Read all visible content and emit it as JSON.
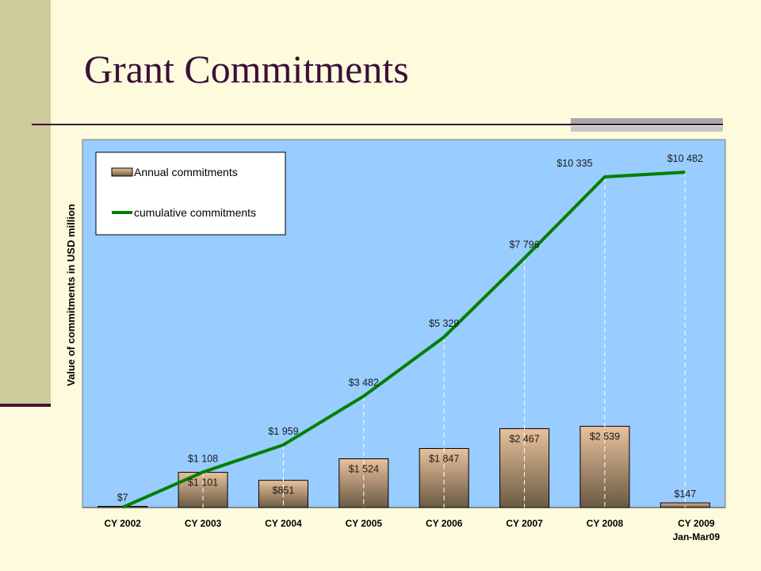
{
  "slide": {
    "title": "Grant Commitments"
  },
  "colors": {
    "plot_bg": "#99ccff",
    "bar_top": "#e9c19c",
    "bar_bottom": "#6a5a43",
    "line": "#008000",
    "title": "#3c0f3a",
    "side_band": "#cdcb9a"
  },
  "chart_data": {
    "type": "bar",
    "categories": [
      [
        "CY 2002"
      ],
      [
        "CY 2003"
      ],
      [
        "CY 2004"
      ],
      [
        "CY 2005"
      ],
      [
        "CY 2006"
      ],
      [
        "CY 2007"
      ],
      [
        "CY 2008"
      ],
      [
        "CY 2009",
        "Jan-Mar09"
      ]
    ],
    "ylabel": "Value of commitments in USD million",
    "ylim": [
      0,
      11500
    ],
    "grid": false,
    "legend_position": "top-left",
    "series": [
      {
        "name": "Annual commitments",
        "type": "bar",
        "values": [
          7,
          1101,
          851,
          1524,
          1847,
          2467,
          2539,
          147
        ],
        "labels": [
          "$7",
          "$1 101",
          "$851",
          "$1 524",
          "$1 847",
          "$2 467",
          "$2 539",
          "$147"
        ]
      },
      {
        "name": "cumulative commitments",
        "type": "line",
        "values": [
          7,
          1108,
          1959,
          3482,
          5329,
          7796,
          10335,
          10482
        ],
        "labels": [
          "",
          "$1 108",
          "$1 959",
          "$3 482",
          "$5 329",
          "$7 796",
          "$10 335",
          "$10 482"
        ]
      }
    ]
  }
}
